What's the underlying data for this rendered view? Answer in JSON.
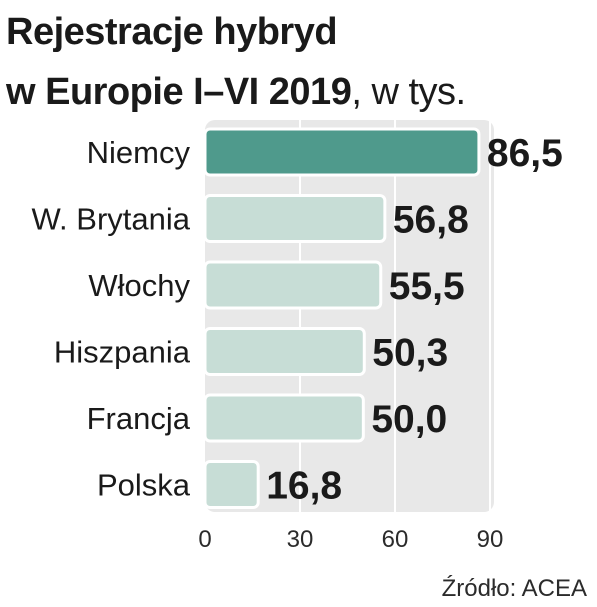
{
  "chart_data": {
    "type": "bar",
    "orientation": "horizontal",
    "title": "Rejestracje hybryd",
    "title_line2": "w Europie I–VI 2019",
    "title_unit": ", w tys.",
    "categories": [
      "Niemcy",
      "W. Brytania",
      "Włochy",
      "Hiszpania",
      "Francja",
      "Polska"
    ],
    "values": [
      86.5,
      56.8,
      55.5,
      50.3,
      50.0,
      16.8
    ],
    "value_labels": [
      "86,5",
      "56,8",
      "55,5",
      "50,3",
      "50,0",
      "16,8"
    ],
    "xlim": [
      0,
      90
    ],
    "xticks": [
      0,
      30,
      60,
      90
    ],
    "xtick_labels": [
      "0",
      "30",
      "60",
      "90"
    ],
    "grid": true,
    "colors": {
      "highlight": "#4f9a8c",
      "bar": "#c7ddd6",
      "bar_stroke": "#ffffff",
      "panel": "#e8e8e8"
    },
    "highlight_index": 0
  },
  "source": "Źródło: ACEA"
}
